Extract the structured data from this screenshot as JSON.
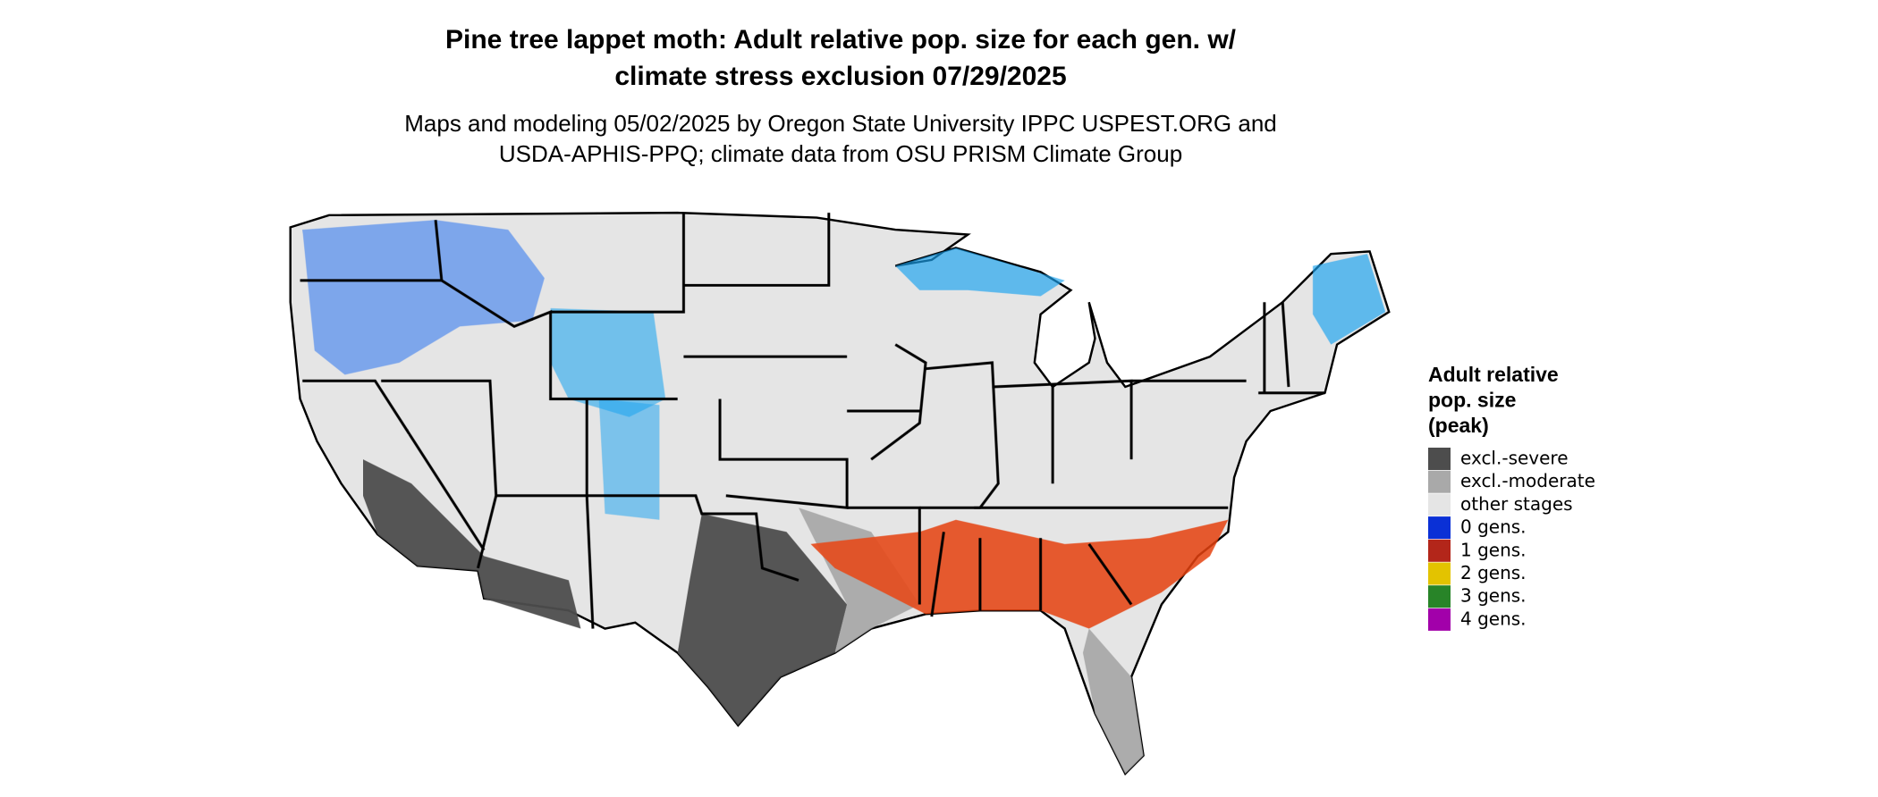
{
  "title_lines": [
    "Pine tree lappet moth: Adult relative pop. size for each gen. w/",
    "climate stress exclusion 07/29/2025"
  ],
  "subtitle_lines": [
    "Maps and modeling 05/02/2025 by Oregon State University IPPC USPEST.ORG and",
    "USDA-APHIS-PPQ; climate data from OSU PRISM Climate Group"
  ],
  "legend": {
    "title_lines": [
      "Adult relative",
      "pop. size",
      "(peak)"
    ],
    "items": [
      {
        "label": "excl.-severe",
        "color": "#4d4d4d"
      },
      {
        "label": "excl.-moderate",
        "color": "#a9a9a9"
      },
      {
        "label": "other stages",
        "color": "#e5e5e5"
      },
      {
        "label": "0 gens.",
        "color": "#0a30d6"
      },
      {
        "label": "1 gens.",
        "color": "#b3261a"
      },
      {
        "label": "2 gens.",
        "color": "#e3c300"
      },
      {
        "label": "3 gens.",
        "color": "#288428"
      },
      {
        "label": "4 gens.",
        "color": "#a200aa"
      }
    ]
  }
}
